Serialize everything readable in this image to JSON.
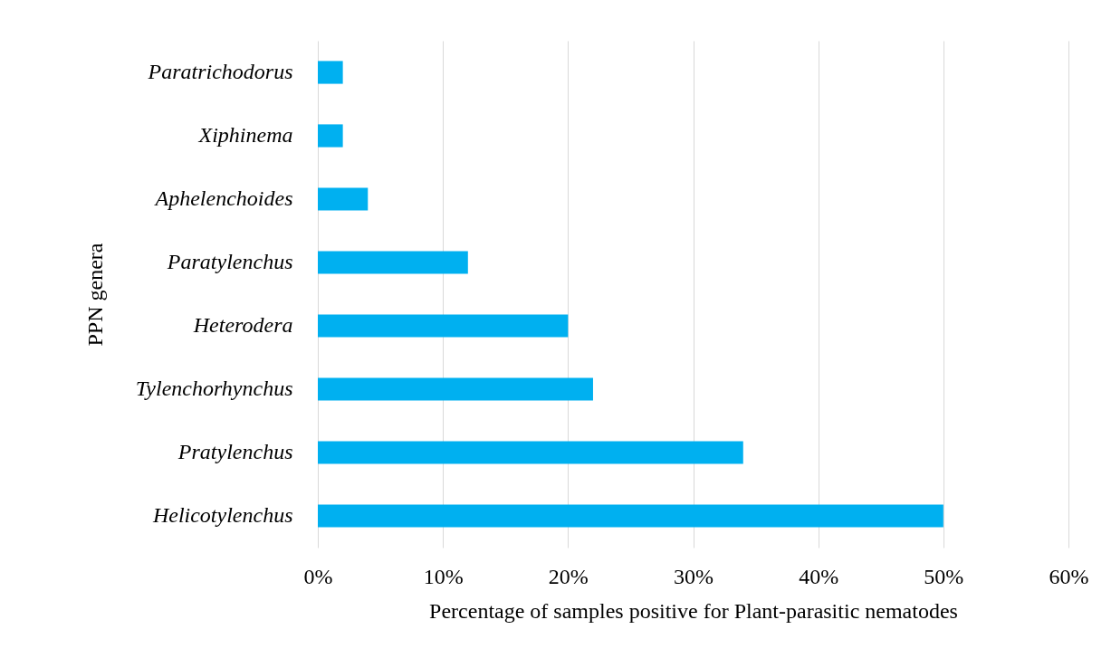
{
  "chart_data": {
    "type": "bar",
    "orientation": "horizontal",
    "categories": [
      "Paratrichodorus",
      "Xiphinema",
      "Aphelenchoides",
      "Paratylenchus",
      "Heterodera",
      "Tylenchorhynchus",
      "Pratylenchus",
      "Helicotylenchus"
    ],
    "values": [
      2,
      2,
      4,
      12,
      20,
      22,
      34,
      50
    ],
    "color": "#00b0f0",
    "xlabel": "Percentage of samples positive for Plant-parasitic nematodes",
    "ylabel": "PPN genera",
    "xlim": [
      0,
      60
    ],
    "xticks": [
      {
        "value": 0,
        "label": "0%"
      },
      {
        "value": 10,
        "label": "10%"
      },
      {
        "value": 20,
        "label": "20%"
      },
      {
        "value": 30,
        "label": "30%"
      },
      {
        "value": 40,
        "label": "40%"
      },
      {
        "value": 50,
        "label": "50%"
      },
      {
        "value": 60,
        "label": "60%"
      }
    ],
    "grid": "x"
  }
}
